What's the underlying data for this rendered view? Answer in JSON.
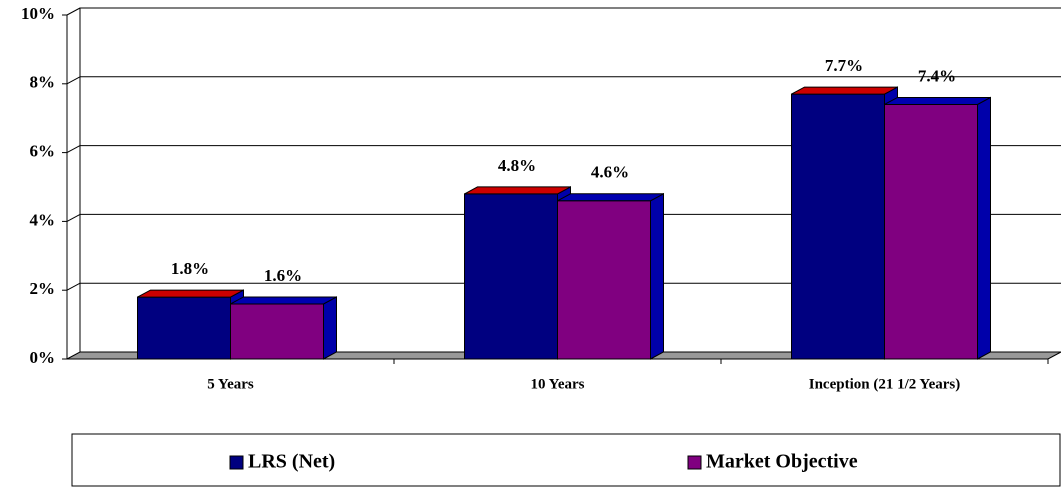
{
  "chart_data": {
    "type": "bar3d",
    "categories": [
      "5 Years",
      "10 Years",
      "Inception (21 1/2 Years)"
    ],
    "series": [
      {
        "name": "LRS (Net)",
        "color": "#000080",
        "top_color": "#cc0000",
        "values": [
          1.8,
          4.8,
          7.7
        ],
        "value_labels": [
          "1.8%",
          "4.8%",
          "7.7%"
        ]
      },
      {
        "name": "Market Objective",
        "color": "#800080",
        "top_color": "#0000b0",
        "values": [
          1.6,
          4.6,
          7.4
        ],
        "value_labels": [
          "1.6%",
          "4.6%",
          "7.4%"
        ]
      }
    ],
    "ylim": [
      0,
      10
    ],
    "yticks": [
      {
        "value": 0,
        "label": "0%"
      },
      {
        "value": 2,
        "label": "2%"
      },
      {
        "value": 4,
        "label": "4%"
      },
      {
        "value": 6,
        "label": "6%"
      },
      {
        "value": 8,
        "label": "8%"
      },
      {
        "value": 10,
        "label": "10%"
      }
    ],
    "grid": true,
    "legend": "bottom"
  }
}
